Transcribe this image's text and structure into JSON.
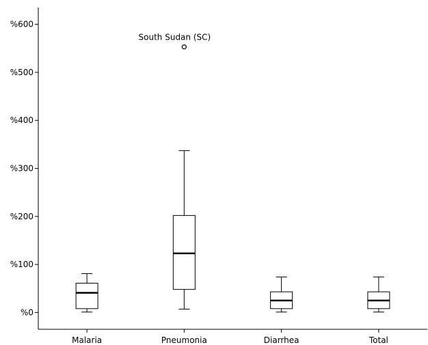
{
  "chart_data": {
    "type": "boxplot",
    "title": "",
    "xlabel": "",
    "ylabel": "",
    "ylim": [
      -35,
      635
    ],
    "y_ticks": [
      0,
      100,
      200,
      300,
      400,
      500,
      600
    ],
    "y_tick_labels": [
      "%0",
      "%100",
      "%200",
      "%300",
      "%400",
      "%500",
      "%600"
    ],
    "categories": [
      "Malaria",
      "Pneumonia",
      "Diarrhea",
      "Total"
    ],
    "boxes": [
      {
        "category": "Malaria",
        "min": 1,
        "q1": 8,
        "median": 41,
        "q3": 61,
        "max": 81,
        "outliers": []
      },
      {
        "category": "Pneumonia",
        "min": 7,
        "q1": 48,
        "median": 123,
        "q3": 202,
        "max": 337,
        "outliers": [
          {
            "value": 553,
            "label": "South Sudan (SC)"
          }
        ]
      },
      {
        "category": "Diarrhea",
        "min": 1,
        "q1": 8,
        "median": 25,
        "q3": 43,
        "max": 74,
        "outliers": []
      },
      {
        "category": "Total",
        "min": 1,
        "q1": 8,
        "median": 25,
        "q3": 43,
        "max": 74,
        "outliers": []
      }
    ],
    "grid": false,
    "legend": "none"
  }
}
